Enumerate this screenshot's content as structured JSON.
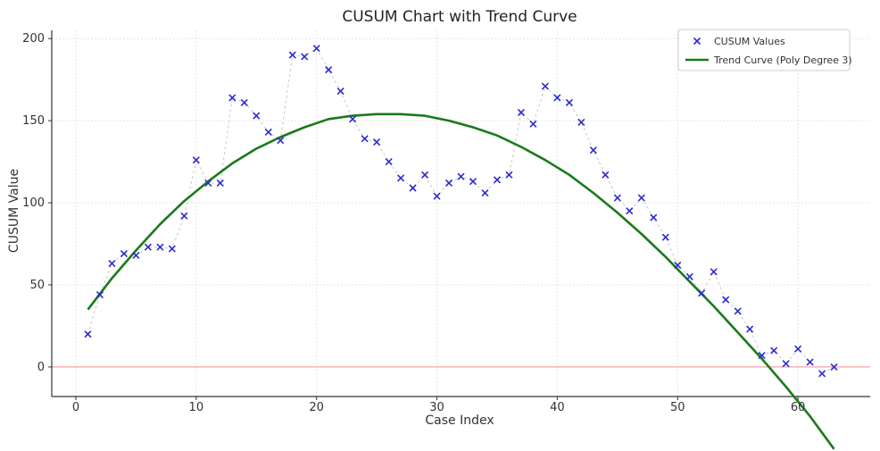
{
  "chart_data": {
    "type": "scatter",
    "title": "CUSUM Chart with Trend Curve",
    "xlabel": "Case Index",
    "ylabel": "CUSUM Value",
    "xlim": [
      -2,
      66
    ],
    "ylim": [
      -18,
      205
    ],
    "xticks": [
      0,
      10,
      20,
      30,
      40,
      50,
      60
    ],
    "yticks": [
      0,
      50,
      100,
      150,
      200
    ],
    "grid": true,
    "legend_position": "top-right",
    "reference_line": {
      "y": 0,
      "color": "#f4a6a6"
    },
    "series": [
      {
        "name": "CUSUM Values",
        "marker": "x",
        "color": "#2b2bd1",
        "connector_color": "#c8c8c8",
        "x": [
          1,
          2,
          3,
          4,
          5,
          6,
          7,
          8,
          9,
          10,
          11,
          12,
          13,
          14,
          15,
          16,
          17,
          18,
          19,
          20,
          21,
          22,
          23,
          24,
          25,
          26,
          27,
          28,
          29,
          30,
          31,
          32,
          33,
          34,
          35,
          36,
          37,
          38,
          39,
          40,
          41,
          42,
          43,
          44,
          45,
          46,
          47,
          48,
          49,
          50,
          51,
          52,
          53,
          54,
          55,
          56,
          57,
          58,
          59,
          60,
          61,
          62,
          63
        ],
        "y": [
          20,
          44,
          63,
          69,
          68,
          73,
          73,
          72,
          92,
          126,
          112,
          112,
          164,
          161,
          153,
          143,
          138,
          190,
          189,
          194,
          181,
          168,
          151,
          139,
          137,
          125,
          115,
          109,
          117,
          104,
          112,
          116,
          113,
          106,
          114,
          117,
          155,
          148,
          171,
          164,
          161,
          149,
          132,
          117,
          103,
          95,
          103,
          91,
          79,
          62,
          55,
          45,
          58,
          41,
          34,
          23,
          7,
          10,
          2,
          11,
          3,
          -4,
          0
        ]
      },
      {
        "name": "Trend Curve (Poly Degree 3)",
        "type": "line",
        "color": "#1a7a1a",
        "x": [
          1,
          3,
          5,
          7,
          9,
          11,
          13,
          15,
          17,
          19,
          21,
          23,
          25,
          27,
          29,
          31,
          33,
          35,
          37,
          39,
          41,
          43,
          45,
          47,
          49,
          51,
          53,
          55,
          57,
          59,
          61,
          63
        ],
        "y": [
          35,
          54,
          71,
          87,
          101,
          113,
          124,
          133,
          140,
          146,
          151,
          153,
          154,
          154,
          153,
          150,
          146,
          141,
          134,
          126,
          117,
          106,
          94,
          81,
          67,
          52,
          37,
          21,
          5,
          -12,
          -30,
          -50
        ]
      }
    ]
  }
}
